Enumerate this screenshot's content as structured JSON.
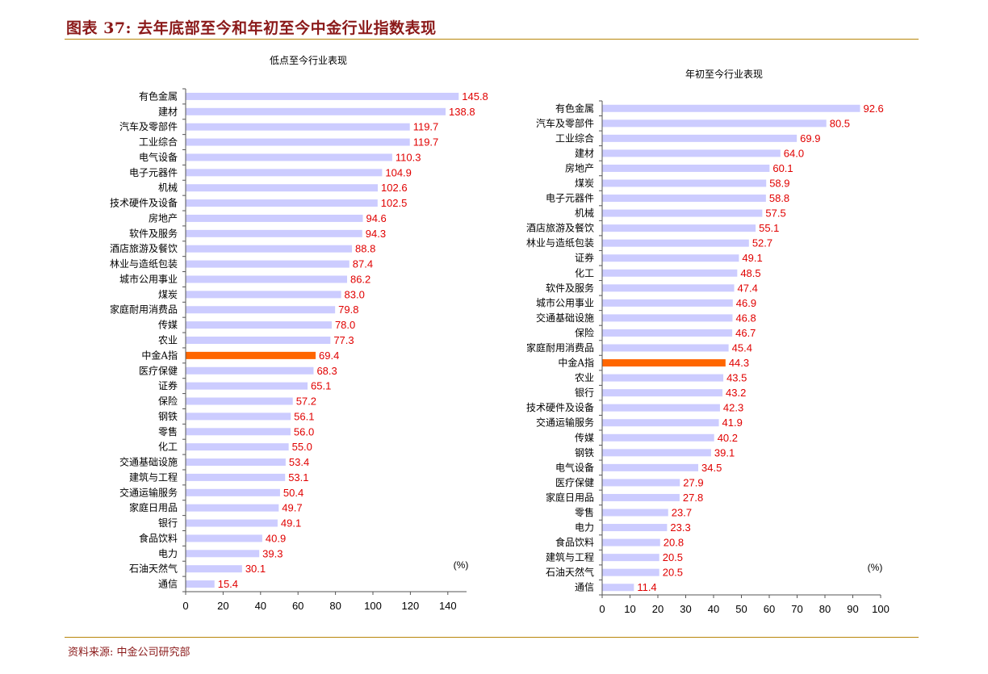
{
  "figure_title": "图表 37:  去年底部至今和年初至今中金行业指数表现",
  "source": "资料来源:  中金公司研究部",
  "colors": {
    "bar": "#ccccff",
    "highlight": "#ff6600",
    "value_label": "#e00000"
  },
  "chart_data": [
    {
      "type": "bar",
      "orientation": "horizontal",
      "title": "低点至今行业表现",
      "unit_label": "(%)",
      "xlim": [
        0,
        150
      ],
      "xticks": [
        0,
        20,
        40,
        60,
        80,
        100,
        120,
        140
      ],
      "highlight": "中金A指",
      "categories": [
        "有色金属",
        "建材",
        "汽车及零部件",
        "工业综合",
        "电气设备",
        "电子元器件",
        "机械",
        "技术硬件及设备",
        "房地产",
        "软件及服务",
        "酒店旅游及餐饮",
        "林业与造纸包装",
        "城市公用事业",
        "煤炭",
        "家庭耐用消费品",
        "传媒",
        "农业",
        "中金A指",
        "医疗保健",
        "证券",
        "保险",
        "钢铁",
        "零售",
        "化工",
        "交通基础设施",
        "建筑与工程",
        "交通运输服务",
        "家庭日用品",
        "银行",
        "食品饮料",
        "电力",
        "石油天然气",
        "通信"
      ],
      "values": [
        145.8,
        138.8,
        119.7,
        119.7,
        110.3,
        104.9,
        102.6,
        102.5,
        94.6,
        94.3,
        88.8,
        87.4,
        86.2,
        83.0,
        79.8,
        78.0,
        77.3,
        69.4,
        68.3,
        65.1,
        57.2,
        56.1,
        56.0,
        55.0,
        53.4,
        53.1,
        50.4,
        49.7,
        49.1,
        40.9,
        39.3,
        30.1,
        15.4
      ]
    },
    {
      "type": "bar",
      "orientation": "horizontal",
      "title": "年初至今行业表现",
      "unit_label": "(%)",
      "xlim": [
        0,
        100
      ],
      "xticks": [
        0,
        10,
        20,
        30,
        40,
        50,
        60,
        70,
        80,
        90,
        100
      ],
      "highlight": "中金A指",
      "categories": [
        "有色金属",
        "汽车及零部件",
        "工业综合",
        "建材",
        "房地产",
        "煤炭",
        "电子元器件",
        "机械",
        "酒店旅游及餐饮",
        "林业与造纸包装",
        "证券",
        "化工",
        "软件及服务",
        "城市公用事业",
        "交通基础设施",
        "保险",
        "家庭耐用消费品",
        "中金A指",
        "农业",
        "银行",
        "技术硬件及设备",
        "交通运输服务",
        "传媒",
        "钢铁",
        "电气设备",
        "医疗保健",
        "家庭日用品",
        "零售",
        "电力",
        "食品饮料",
        "建筑与工程",
        "石油天然气",
        "通信"
      ],
      "values": [
        92.6,
        80.5,
        69.9,
        64.0,
        60.1,
        58.9,
        58.8,
        57.5,
        55.1,
        52.7,
        49.1,
        48.5,
        47.4,
        46.9,
        46.8,
        46.7,
        45.4,
        44.3,
        43.5,
        43.2,
        42.3,
        41.9,
        40.2,
        39.1,
        34.5,
        27.9,
        27.8,
        23.7,
        23.3,
        20.8,
        20.5,
        20.5,
        11.4
      ]
    }
  ]
}
